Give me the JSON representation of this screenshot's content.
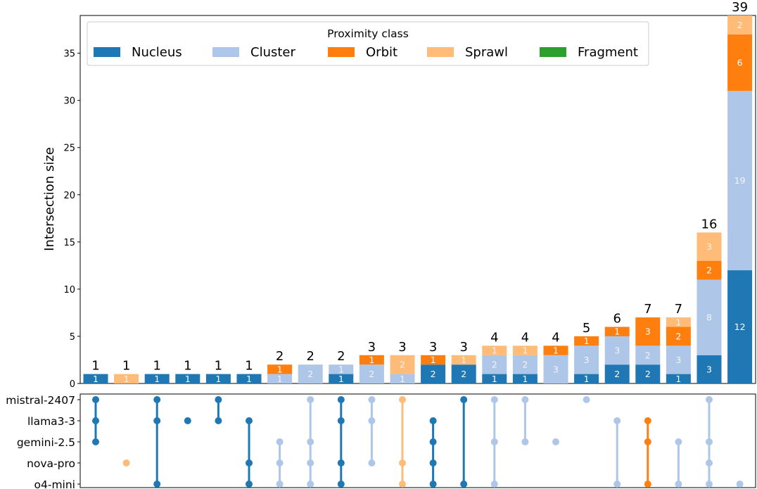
{
  "chart_data": {
    "type": "upset",
    "ylabel": "Intersection size",
    "ylim": [
      0,
      39
    ],
    "yticks": [
      0,
      5,
      10,
      15,
      20,
      25,
      30,
      35
    ],
    "legend": {
      "title": "Proximity class",
      "placement": "top-left",
      "entries": [
        "Nucleus",
        "Cluster",
        "Orbit",
        "Sprawl",
        "Fragment"
      ]
    },
    "class_colors": {
      "Nucleus": "#1f77b4",
      "Cluster": "#aec7e8",
      "Orbit": "#ff7f0e",
      "Sprawl": "#ffbb78",
      "Fragment": "#2ca02c"
    },
    "sets": [
      "mistral-2407",
      "llama3-3",
      "gemini-2.5",
      "nova-pro",
      "o4-mini"
    ],
    "totals": [
      1,
      1,
      1,
      1,
      1,
      1,
      2,
      2,
      2,
      3,
      3,
      3,
      3,
      4,
      4,
      4,
      5,
      6,
      7,
      7,
      16,
      39
    ],
    "series": [
      {
        "name": "Nucleus",
        "values": [
          1,
          0,
          1,
          1,
          1,
          1,
          0,
          0,
          1,
          0,
          0,
          2,
          2,
          1,
          1,
          0,
          1,
          2,
          2,
          1,
          3,
          12
        ]
      },
      {
        "name": "Cluster",
        "values": [
          0,
          0,
          0,
          0,
          0,
          0,
          1,
          2,
          1,
          2,
          1,
          0,
          0,
          2,
          2,
          3,
          3,
          3,
          2,
          3,
          8,
          19
        ]
      },
      {
        "name": "Orbit",
        "values": [
          0,
          0,
          0,
          0,
          0,
          0,
          1,
          0,
          0,
          1,
          0,
          1,
          0,
          0,
          0,
          1,
          1,
          1,
          3,
          2,
          2,
          6
        ]
      },
      {
        "name": "Sprawl",
        "values": [
          0,
          1,
          0,
          0,
          0,
          0,
          0,
          0,
          0,
          0,
          2,
          0,
          1,
          1,
          1,
          0,
          0,
          0,
          0,
          1,
          3,
          2
        ]
      },
      {
        "name": "Fragment",
        "values": [
          0,
          0,
          0,
          0,
          0,
          0,
          0,
          0,
          0,
          0,
          0,
          0,
          0,
          0,
          0,
          0,
          0,
          0,
          0,
          0,
          0,
          0
        ]
      }
    ],
    "members": [
      [
        "mistral-2407",
        "llama3-3",
        "gemini-2.5"
      ],
      [
        "nova-pro"
      ],
      [
        "mistral-2407",
        "llama3-3",
        "o4-mini"
      ],
      [
        "llama3-3"
      ],
      [
        "mistral-2407",
        "llama3-3"
      ],
      [
        "llama3-3",
        "nova-pro",
        "o4-mini"
      ],
      [
        "gemini-2.5",
        "nova-pro",
        "o4-mini"
      ],
      [
        "mistral-2407",
        "gemini-2.5",
        "nova-pro",
        "o4-mini"
      ],
      [
        "mistral-2407",
        "llama3-3",
        "nova-pro",
        "o4-mini"
      ],
      [
        "mistral-2407",
        "llama3-3",
        "nova-pro"
      ],
      [
        "mistral-2407",
        "nova-pro",
        "o4-mini"
      ],
      [
        "llama3-3",
        "gemini-2.5",
        "nova-pro",
        "o4-mini"
      ],
      [
        "mistral-2407",
        "o4-mini"
      ],
      [
        "mistral-2407",
        "gemini-2.5",
        "o4-mini"
      ],
      [
        "mistral-2407",
        "gemini-2.5"
      ],
      [
        "gemini-2.5"
      ],
      [
        "mistral-2407"
      ],
      [
        "llama3-3",
        "o4-mini"
      ],
      [
        "llama3-3",
        "gemini-2.5",
        "o4-mini"
      ],
      [
        "gemini-2.5",
        "o4-mini"
      ],
      [
        "mistral-2407",
        "gemini-2.5",
        "nova-pro",
        "o4-mini"
      ],
      [
        "o4-mini"
      ]
    ],
    "matrix_colors": [
      "#1f77b4",
      "#ffbb78",
      "#1f77b4",
      "#1f77b4",
      "#1f77b4",
      "#1f77b4",
      "#aec7e8",
      "#aec7e8",
      "#1f77b4",
      "#aec7e8",
      "#ffbb78",
      "#1f77b4",
      "#1f77b4",
      "#aec7e8",
      "#aec7e8",
      "#aec7e8",
      "#aec7e8",
      "#aec7e8",
      "#ff7f0e",
      "#aec7e8",
      "#aec7e8",
      "#aec7e8"
    ]
  }
}
